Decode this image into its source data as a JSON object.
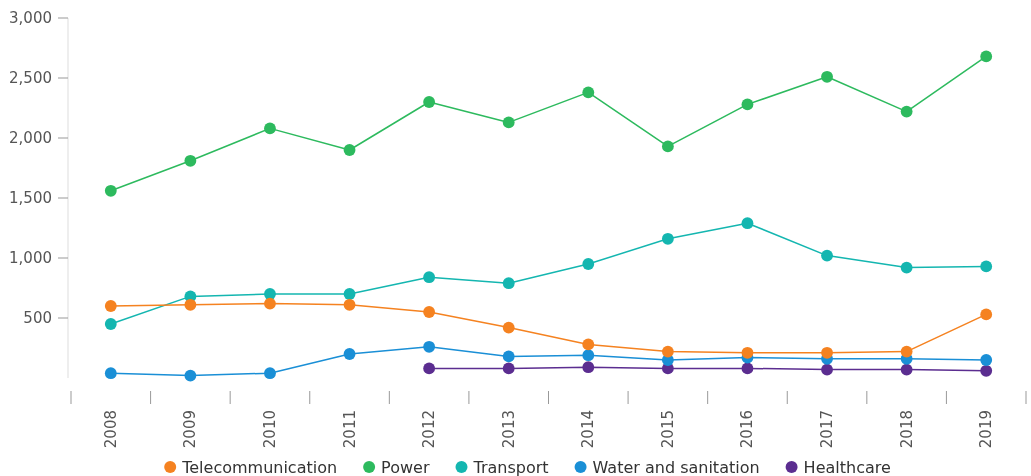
{
  "chart_data": {
    "type": "line",
    "categories": [
      "2008",
      "2009",
      "2010",
      "2011",
      "2012",
      "2013",
      "2014",
      "2015",
      "2016",
      "2017",
      "2018",
      "2019"
    ],
    "series": [
      {
        "name": "Telecommunication",
        "color": "#f58220",
        "values": [
          600,
          610,
          620,
          610,
          550,
          420,
          280,
          220,
          210,
          210,
          220,
          530
        ]
      },
      {
        "name": "Power",
        "color": "#2dba5e",
        "values": [
          1560,
          1810,
          2080,
          1900,
          2300,
          2130,
          2380,
          1930,
          2280,
          2510,
          2220,
          2680
        ]
      },
      {
        "name": "Transport",
        "color": "#14b6b0",
        "values": [
          450,
          680,
          700,
          700,
          840,
          790,
          950,
          1160,
          1290,
          1020,
          920,
          930
        ]
      },
      {
        "name": "Water and sanitation",
        "color": "#1a8fd6",
        "values": [
          40,
          20,
          40,
          200,
          260,
          180,
          190,
          150,
          170,
          160,
          160,
          150
        ]
      },
      {
        "name": "Healthcare",
        "color": "#5b2d90",
        "values": [
          null,
          null,
          null,
          null,
          80,
          80,
          90,
          80,
          80,
          70,
          70,
          60
        ]
      }
    ],
    "ylim": [
      0,
      3000
    ],
    "yticks": [
      {
        "value": 500,
        "label": "500"
      },
      {
        "value": 1000,
        "label": "1,000"
      },
      {
        "value": 1500,
        "label": "1,500"
      },
      {
        "value": 2000,
        "label": "2,000"
      },
      {
        "value": 2500,
        "label": "2,500"
      },
      {
        "value": 3000,
        "label": "3,000"
      }
    ],
    "marker": "circle",
    "line_style": "solid",
    "grid": false,
    "legend": "bottom"
  }
}
